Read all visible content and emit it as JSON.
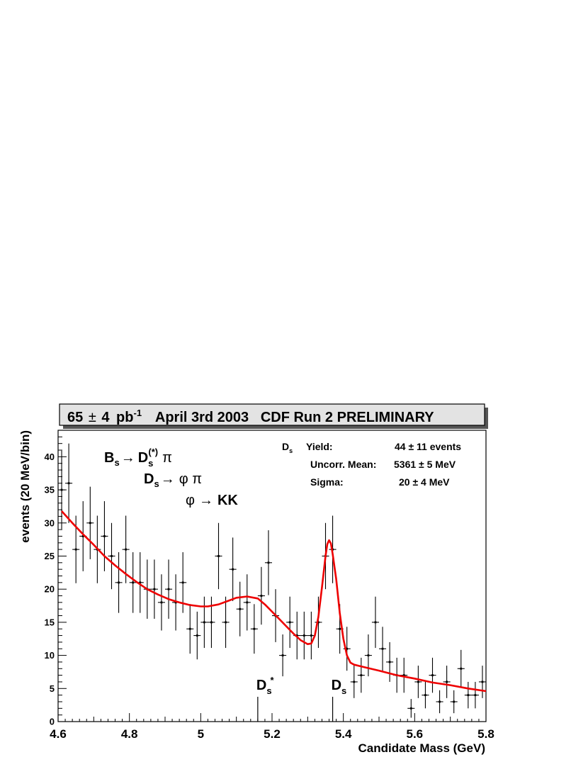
{
  "chart_data": {
    "type": "scatter",
    "title": "65 ± 4 pb-1 April 3rd 2003 CDF Run 2 PRELIMINARY",
    "title_parts": {
      "lumi": "65",
      "pm": "±",
      "lumi_err": "4",
      "unit": "pb",
      "unit_exp": "-1",
      "rest": "April 3rd 2003   CDF Run 2 PRELIMINARY"
    },
    "xlabel": "Candidate Mass (GeV)",
    "ylabel": "events (20 MeV/bin)",
    "xlim": [
      4.6,
      5.8
    ],
    "ylim": [
      0,
      44
    ],
    "xticks": [
      4.6,
      4.8,
      5.0,
      5.2,
      5.4,
      5.6,
      5.8
    ],
    "xtick_labels": [
      "4.6",
      "4.8",
      "5",
      "5.2",
      "5.4",
      "5.6",
      "5.8"
    ],
    "yticks": [
      0,
      5,
      10,
      15,
      20,
      25,
      30,
      35,
      40
    ],
    "ytick_labels": [
      "0",
      "5",
      "10",
      "15",
      "20",
      "25",
      "30",
      "35",
      "40"
    ],
    "bin_width": 0.02,
    "x": [
      4.61,
      4.63,
      4.65,
      4.67,
      4.69,
      4.71,
      4.73,
      4.75,
      4.77,
      4.79,
      4.81,
      4.83,
      4.85,
      4.87,
      4.89,
      4.91,
      4.93,
      4.95,
      4.97,
      4.99,
      5.01,
      5.03,
      5.05,
      5.07,
      5.09,
      5.11,
      5.13,
      5.15,
      5.17,
      5.19,
      5.21,
      5.23,
      5.25,
      5.27,
      5.29,
      5.31,
      5.33,
      5.35,
      5.37,
      5.39,
      5.41,
      5.43,
      5.45,
      5.47,
      5.49,
      5.51,
      5.53,
      5.55,
      5.57,
      5.59,
      5.61,
      5.63,
      5.65,
      5.67,
      5.69,
      5.71,
      5.73,
      5.75,
      5.77,
      5.79
    ],
    "values": [
      35,
      36,
      26,
      28,
      30,
      26,
      28,
      25,
      21,
      26,
      21,
      21,
      20,
      20,
      18,
      20,
      18,
      21,
      14,
      13,
      15,
      15,
      25,
      15,
      23,
      17,
      18,
      14,
      19,
      24,
      16,
      10,
      15,
      13,
      13,
      13,
      15,
      25,
      26,
      14,
      11,
      6,
      7,
      10,
      15,
      11,
      9,
      7,
      7,
      2,
      6,
      4,
      7,
      3,
      6,
      3,
      8,
      4,
      4,
      6
    ],
    "fit_curve": {
      "name": "fit",
      "color": "#ee0000",
      "x": [
        4.61,
        4.64,
        4.67,
        4.7,
        4.73,
        4.76,
        4.79,
        4.82,
        4.85,
        4.88,
        4.91,
        4.94,
        4.97,
        5.0,
        5.02,
        5.05,
        5.08,
        5.1,
        5.13,
        5.16,
        5.18,
        5.2,
        5.22,
        5.24,
        5.26,
        5.28,
        5.3,
        5.31,
        5.32,
        5.33,
        5.34,
        5.35,
        5.355,
        5.36,
        5.365,
        5.37,
        5.38,
        5.39,
        5.4,
        5.41,
        5.42,
        5.43,
        5.46,
        5.5,
        5.55,
        5.6,
        5.65,
        5.7,
        5.75,
        5.8
      ],
      "y": [
        31.8,
        30.0,
        28.3,
        26.7,
        25.0,
        23.6,
        22.3,
        21.1,
        20.0,
        19.2,
        18.5,
        18.0,
        17.6,
        17.4,
        17.4,
        17.7,
        18.3,
        18.7,
        18.9,
        18.6,
        17.7,
        16.6,
        15.5,
        14.4,
        13.3,
        12.3,
        11.7,
        11.8,
        13.0,
        15.8,
        20.3,
        25.0,
        26.8,
        27.4,
        26.9,
        25.3,
        21.5,
        16.4,
        12.5,
        10.0,
        8.9,
        8.6,
        8.2,
        7.7,
        7.0,
        6.5,
        5.9,
        5.5,
        5.0,
        4.6
      ]
    },
    "info_box": {
      "channel": "D",
      "channel_sub": "s",
      "yield_label": "Yield:",
      "yield_value": "44 ± 11 events",
      "mean_label": "Uncorr. Mean:",
      "mean_value": "5361  ± 5 MeV",
      "sigma_label": "Sigma:",
      "sigma_value": "20 ± 4 MeV"
    },
    "decay_chain": {
      "line1_b": "B",
      "line1_b_sub": "s",
      "line1_arrow": "→",
      "line1_d": "D",
      "line1_d_sub": "s",
      "line1_d_sup": "(*)",
      "line1_pi": "π",
      "line2_d": "D",
      "line2_d_sub": "s",
      "line2_arrow": "→",
      "line2_rest": "φ π",
      "line3_phi": "φ",
      "line3_arrow": "→",
      "line3_kk": "KK"
    },
    "annotations": [
      {
        "label": "D",
        "sub": "s",
        "sup": "*",
        "x": 5.16
      },
      {
        "label": "D",
        "sub": "s",
        "sup": "",
        "x": 5.37
      }
    ],
    "grid": false
  }
}
